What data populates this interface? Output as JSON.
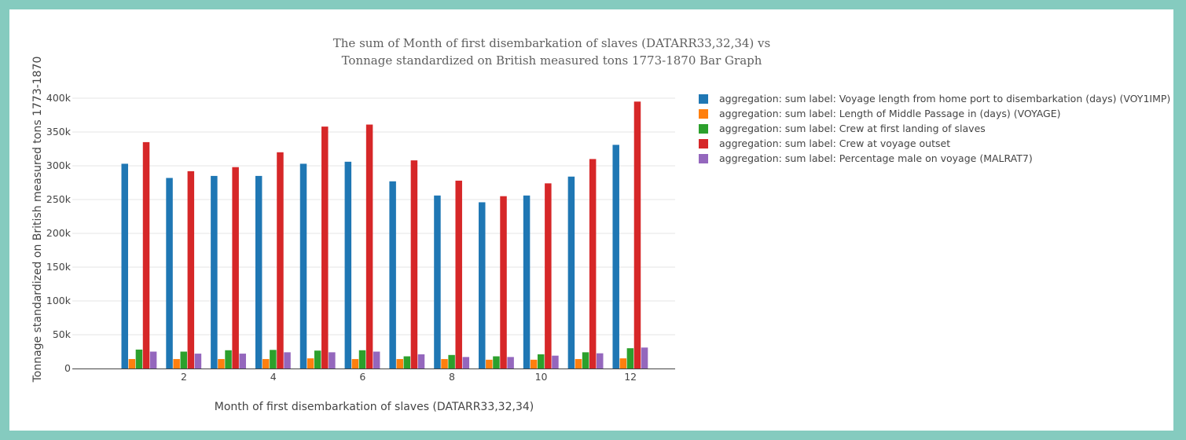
{
  "chart_data": {
    "type": "bar",
    "title_lines": [
      "The sum of Month of first disembarkation of slaves (DATARR33,32,34) vs",
      "Tonnage standardized on British measured tons 1773-1870 Bar Graph"
    ],
    "xlabel": "Month of first disembarkation of slaves (DATARR33,32,34)",
    "ylabel": "Tonnage standardized on British measured tons 1773-1870",
    "x": [
      1,
      2,
      3,
      4,
      5,
      6,
      7,
      8,
      9,
      10,
      11,
      12
    ],
    "xlim": [
      -0.5,
      13
    ],
    "x_ticks": [
      2,
      4,
      6,
      8,
      10,
      12
    ],
    "x_tick_labels": [
      "2",
      "4",
      "6",
      "8",
      "10",
      "12"
    ],
    "ylim": [
      0,
      400000
    ],
    "y_ticks": [
      0,
      50000,
      100000,
      150000,
      200000,
      250000,
      300000,
      350000,
      400000
    ],
    "y_tick_labels": [
      "0",
      "50k",
      "100k",
      "150k",
      "200k",
      "250k",
      "300k",
      "350k",
      "400k"
    ],
    "grid": true,
    "legend_position": "right",
    "series": [
      {
        "name": "aggregation: sum label: Voyage length from home port to disembarkation (days) (VOY1IMP)",
        "color": "#1f77b4",
        "values": [
          303000,
          282000,
          285000,
          285000,
          303000,
          306000,
          277000,
          256000,
          246000,
          256000,
          284000,
          331000
        ]
      },
      {
        "name": "aggregation: sum label: Length of Middle Passage in (days) (VOYAGE)",
        "color": "#ff7f0e",
        "values": [
          14000,
          14000,
          14000,
          14000,
          15000,
          14000,
          14000,
          14000,
          13000,
          13000,
          14000,
          15000
        ]
      },
      {
        "name": "aggregation: sum label: Crew at first landing of slaves",
        "color": "#2ca02c",
        "values": [
          28000,
          25000,
          27000,
          27500,
          26500,
          27000,
          18000,
          20000,
          18000,
          21000,
          24000,
          30000
        ]
      },
      {
        "name": "aggregation: sum label: Crew at voyage outset",
        "color": "#d62728",
        "values": [
          335000,
          292000,
          298000,
          320000,
          358000,
          361000,
          308000,
          278000,
          255000,
          274000,
          310000,
          395000
        ]
      },
      {
        "name": "aggregation: sum label: Percentage male on voyage (MALRAT7)",
        "color": "#9467bd",
        "values": [
          25000,
          22000,
          22000,
          24000,
          24000,
          25000,
          21000,
          17000,
          17000,
          19000,
          22500,
          31000
        ]
      }
    ]
  }
}
